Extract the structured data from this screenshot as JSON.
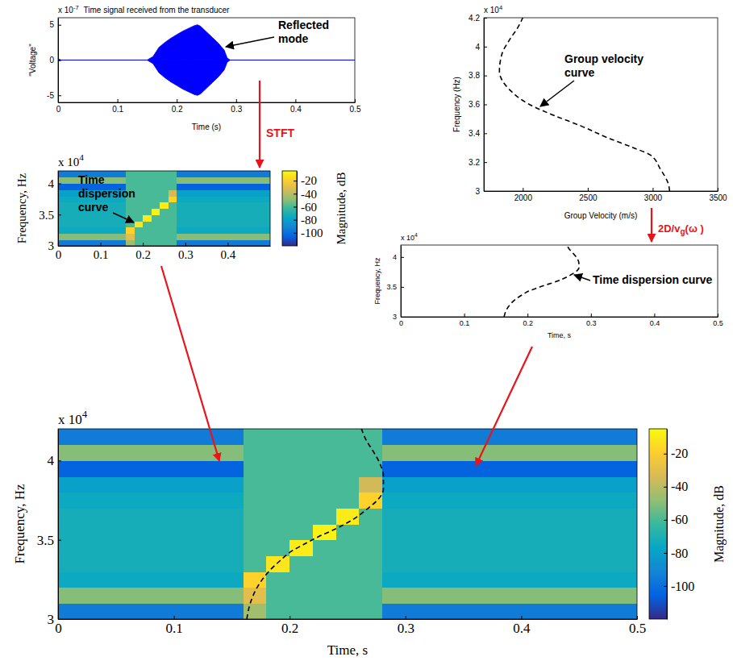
{
  "chart_data": [
    {
      "type": "area",
      "title": "Time signal received from the transducer",
      "y_multiplier": {
        "base": "x 10",
        "exponent": "-7"
      },
      "xlabel": "Time (s)",
      "ylabel": "\"Voltage\"",
      "annotation": "Reflected mode",
      "x": [
        0,
        0.005,
        0.01,
        0.15,
        0.16,
        0.17,
        0.18,
        0.19,
        0.2,
        0.21,
        0.22,
        0.23,
        0.235,
        0.24,
        0.25,
        0.26,
        0.27,
        0.28,
        0.285,
        0.29,
        0.5
      ],
      "series": [
        {
          "color": "#0000ff",
          "values": [
            0.2,
            0,
            0,
            0,
            0.5,
            1.8,
            2.5,
            3.1,
            3.6,
            4.1,
            4.5,
            4.9,
            5,
            4.8,
            4,
            3.2,
            2.4,
            1.4,
            0.3,
            0,
            0
          ]
        },
        {
          "color": "#0000ff",
          "values": [
            -0.2,
            0,
            0,
            0,
            -0.5,
            -1.8,
            -2.5,
            -3.1,
            -3.6,
            -4.1,
            -4.5,
            -4.9,
            -5,
            -4.8,
            -4,
            -3.2,
            -2.4,
            -1.4,
            -0.3,
            0,
            0
          ]
        }
      ],
      "xlim": [
        0,
        0.5
      ],
      "xticks": [
        0,
        0.1,
        0.2,
        0.3,
        0.4,
        0.5
      ],
      "ylim": [
        -6,
        6
      ],
      "yticks": [
        -5,
        0,
        5
      ]
    },
    {
      "type": "line",
      "y_multiplier": {
        "base": "x 10",
        "exponent": "4"
      },
      "xlabel": "Group Velocity (m/s)",
      "ylabel": "Frequency (Hz)",
      "annotation": "Group velocity curve",
      "x": [
        3130,
        3120,
        3060,
        2980,
        2850,
        2650,
        2450,
        2250,
        2050,
        1900,
        1820,
        1840,
        1900,
        1960,
        2000
      ],
      "series": [
        {
          "color": "#000000",
          "line_style": "dashed",
          "values": [
            3,
            3.05,
            3.15,
            3.25,
            3.3,
            3.37,
            3.45,
            3.52,
            3.6,
            3.7,
            3.83,
            3.95,
            4.05,
            4.13,
            4.2
          ]
        }
      ],
      "xlim": [
        1700,
        3500
      ],
      "xticks": [
        2000,
        2500,
        3000,
        3500
      ],
      "ylim": [
        3,
        4.2
      ],
      "yticks": [
        3,
        3.2,
        3.4,
        3.6,
        3.8,
        4,
        4.2
      ]
    },
    {
      "type": "heatmap",
      "y_multiplier": {
        "base": "x 10",
        "exponent": "4"
      },
      "ylabel": "Frequency, Hz",
      "annotation": "Time dispersion curve",
      "x_bins": [
        0,
        0.02,
        0.04,
        0.06,
        0.08,
        0.1,
        0.12,
        0.14,
        0.16,
        0.18,
        0.2,
        0.22,
        0.24,
        0.26,
        0.28,
        0.3,
        0.32,
        0.34,
        0.36,
        0.38,
        0.4,
        0.42,
        0.44,
        0.46,
        0.48,
        0.5
      ],
      "y_bins": [
        3,
        3.1,
        3.2,
        3.3,
        3.4,
        3.5,
        3.6,
        3.7,
        3.8,
        3.9,
        4,
        4.1,
        4.2
      ],
      "cells": [
        [
          -95,
          -95,
          -95,
          -95,
          -95,
          -95,
          -95,
          -95,
          -45,
          -60,
          -60,
          -60,
          -60,
          -60,
          -95,
          -95,
          -95,
          -95,
          -95,
          -95,
          -95,
          -95,
          -95,
          -95,
          -95
        ],
        [
          -50,
          -50,
          -50,
          -50,
          -50,
          -50,
          -50,
          -50,
          -30,
          -60,
          -60,
          -60,
          -60,
          -60,
          -50,
          -50,
          -50,
          -50,
          -50,
          -50,
          -50,
          -50,
          -50,
          -50,
          -50
        ],
        [
          -75,
          -75,
          -75,
          -75,
          -75,
          -75,
          -75,
          -75,
          -18,
          -60,
          -60,
          -60,
          -60,
          -60,
          -75,
          -75,
          -75,
          -75,
          -75,
          -75,
          -75,
          -75,
          -75,
          -75,
          -75
        ],
        [
          -72,
          -72,
          -72,
          -72,
          -72,
          -72,
          -72,
          -72,
          -60,
          -12,
          -60,
          -60,
          -60,
          -60,
          -72,
          -72,
          -72,
          -72,
          -72,
          -72,
          -72,
          -72,
          -72,
          -72,
          -72
        ],
        [
          -72,
          -72,
          -72,
          -72,
          -72,
          -72,
          -72,
          -72,
          -60,
          -60,
          -10,
          -60,
          -60,
          -60,
          -72,
          -72,
          -72,
          -72,
          -72,
          -72,
          -72,
          -72,
          -72,
          -72,
          -72
        ],
        [
          -72,
          -72,
          -72,
          -72,
          -72,
          -72,
          -72,
          -72,
          -60,
          -60,
          -60,
          -8,
          -60,
          -60,
          -72,
          -72,
          -72,
          -72,
          -72,
          -72,
          -72,
          -72,
          -72,
          -72,
          -72
        ],
        [
          -72,
          -72,
          -72,
          -72,
          -72,
          -72,
          -72,
          -72,
          -60,
          -60,
          -60,
          -60,
          -10,
          -60,
          -72,
          -72,
          -72,
          -72,
          -72,
          -72,
          -72,
          -72,
          -72,
          -72,
          -72
        ],
        [
          -75,
          -75,
          -75,
          -75,
          -75,
          -75,
          -75,
          -75,
          -60,
          -60,
          -60,
          -60,
          -60,
          -18,
          -75,
          -75,
          -75,
          -75,
          -75,
          -75,
          -75,
          -75,
          -75,
          -75,
          -75
        ],
        [
          -80,
          -80,
          -80,
          -80,
          -80,
          -80,
          -80,
          -80,
          -60,
          -60,
          -60,
          -60,
          -60,
          -35,
          -80,
          -80,
          -80,
          -80,
          -80,
          -80,
          -80,
          -80,
          -80,
          -80,
          -80
        ],
        [
          -105,
          -105,
          -105,
          -105,
          -105,
          -105,
          -105,
          -105,
          -60,
          -60,
          -60,
          -60,
          -60,
          -60,
          -105,
          -105,
          -105,
          -105,
          -105,
          -105,
          -105,
          -105,
          -105,
          -105,
          -105
        ],
        [
          -50,
          -50,
          -50,
          -50,
          -50,
          -50,
          -50,
          -50,
          -60,
          -60,
          -60,
          -60,
          -60,
          -60,
          -50,
          -50,
          -50,
          -50,
          -50,
          -50,
          -50,
          -50,
          -50,
          -50,
          -50
        ],
        [
          -95,
          -95,
          -95,
          -95,
          -95,
          -95,
          -95,
          -95,
          -60,
          -60,
          -60,
          -60,
          -60,
          -60,
          -95,
          -95,
          -95,
          -95,
          -95,
          -95,
          -95,
          -95,
          -95,
          -95,
          -95
        ]
      ],
      "clim": [
        -120,
        -5
      ],
      "cticks": [
        -20,
        -40,
        -60,
        -80,
        -100
      ],
      "colorbar_label": "Magnitude, dB",
      "xlim": [
        0,
        0.5
      ],
      "xticks": [
        0,
        0.1,
        0.2,
        0.3,
        0.4
      ],
      "ylim": [
        3,
        4.2
      ],
      "yticks": [
        3,
        3.5,
        4
      ]
    },
    {
      "type": "line",
      "y_multiplier": {
        "base": "x 10",
        "exponent": "4"
      },
      "xlabel": "Time, s",
      "ylabel": "Frequency, Hz",
      "annotation": "Time dispersion curve",
      "x": [
        0.163,
        0.166,
        0.172,
        0.182,
        0.192,
        0.202,
        0.212,
        0.225,
        0.24,
        0.255,
        0.268,
        0.277,
        0.281,
        0.281,
        0.278,
        0.272,
        0.266,
        0.262
      ],
      "series": [
        {
          "color": "#000000",
          "line_style": "dashed",
          "values": [
            3,
            3.1,
            3.2,
            3.3,
            3.37,
            3.43,
            3.47,
            3.52,
            3.57,
            3.63,
            3.7,
            3.76,
            3.82,
            3.9,
            3.98,
            4.06,
            4.13,
            4.2
          ]
        }
      ],
      "xlim": [
        0,
        0.5
      ],
      "xticks": [
        0,
        0.1,
        0.2,
        0.3,
        0.4,
        0.5
      ],
      "ylim": [
        3,
        4.2
      ],
      "yticks": [
        3,
        3.5,
        4
      ]
    },
    {
      "type": "heatmap",
      "y_multiplier": {
        "base": "x 10",
        "exponent": "4"
      },
      "xlabel": "Time, s",
      "ylabel": "Frequency, Hz",
      "x_bins": [
        0,
        0.02,
        0.04,
        0.06,
        0.08,
        0.1,
        0.12,
        0.14,
        0.16,
        0.18,
        0.2,
        0.22,
        0.24,
        0.26,
        0.28,
        0.3,
        0.32,
        0.34,
        0.36,
        0.38,
        0.4,
        0.42,
        0.44,
        0.46,
        0.48,
        0.5
      ],
      "y_bins": [
        3,
        3.1,
        3.2,
        3.3,
        3.4,
        3.5,
        3.6,
        3.7,
        3.8,
        3.9,
        4,
        4.1,
        4.2
      ],
      "cells": [
        [
          -95,
          -95,
          -95,
          -95,
          -95,
          -95,
          -95,
          -95,
          -45,
          -60,
          -60,
          -60,
          -60,
          -60,
          -95,
          -95,
          -95,
          -95,
          -95,
          -95,
          -95,
          -95,
          -95,
          -95,
          -95
        ],
        [
          -50,
          -50,
          -50,
          -50,
          -50,
          -50,
          -50,
          -50,
          -30,
          -60,
          -60,
          -60,
          -60,
          -60,
          -50,
          -50,
          -50,
          -50,
          -50,
          -50,
          -50,
          -50,
          -50,
          -50,
          -50
        ],
        [
          -75,
          -75,
          -75,
          -75,
          -75,
          -75,
          -75,
          -75,
          -18,
          -60,
          -60,
          -60,
          -60,
          -60,
          -75,
          -75,
          -75,
          -75,
          -75,
          -75,
          -75,
          -75,
          -75,
          -75,
          -75
        ],
        [
          -72,
          -72,
          -72,
          -72,
          -72,
          -72,
          -72,
          -72,
          -60,
          -12,
          -60,
          -60,
          -60,
          -60,
          -72,
          -72,
          -72,
          -72,
          -72,
          -72,
          -72,
          -72,
          -72,
          -72,
          -72
        ],
        [
          -72,
          -72,
          -72,
          -72,
          -72,
          -72,
          -72,
          -72,
          -60,
          -60,
          -10,
          -60,
          -60,
          -60,
          -72,
          -72,
          -72,
          -72,
          -72,
          -72,
          -72,
          -72,
          -72,
          -72,
          -72
        ],
        [
          -72,
          -72,
          -72,
          -72,
          -72,
          -72,
          -72,
          -72,
          -60,
          -60,
          -60,
          -8,
          -60,
          -60,
          -72,
          -72,
          -72,
          -72,
          -72,
          -72,
          -72,
          -72,
          -72,
          -72,
          -72
        ],
        [
          -72,
          -72,
          -72,
          -72,
          -72,
          -72,
          -72,
          -72,
          -60,
          -60,
          -60,
          -60,
          -10,
          -60,
          -72,
          -72,
          -72,
          -72,
          -72,
          -72,
          -72,
          -72,
          -72,
          -72,
          -72
        ],
        [
          -75,
          -75,
          -75,
          -75,
          -75,
          -75,
          -75,
          -75,
          -60,
          -60,
          -60,
          -60,
          -60,
          -18,
          -75,
          -75,
          -75,
          -75,
          -75,
          -75,
          -75,
          -75,
          -75,
          -75,
          -75
        ],
        [
          -80,
          -80,
          -80,
          -80,
          -80,
          -80,
          -80,
          -80,
          -60,
          -60,
          -60,
          -60,
          -60,
          -35,
          -80,
          -80,
          -80,
          -80,
          -80,
          -80,
          -80,
          -80,
          -80,
          -80,
          -80
        ],
        [
          -105,
          -105,
          -105,
          -105,
          -105,
          -105,
          -105,
          -105,
          -60,
          -60,
          -60,
          -60,
          -60,
          -60,
          -105,
          -105,
          -105,
          -105,
          -105,
          -105,
          -105,
          -105,
          -105,
          -105,
          -105
        ],
        [
          -50,
          -50,
          -50,
          -50,
          -50,
          -50,
          -50,
          -50,
          -60,
          -60,
          -60,
          -60,
          -60,
          -60,
          -50,
          -50,
          -50,
          -50,
          -50,
          -50,
          -50,
          -50,
          -50,
          -50,
          -50
        ],
        [
          -95,
          -95,
          -95,
          -95,
          -95,
          -95,
          -95,
          -95,
          -60,
          -60,
          -60,
          -60,
          -60,
          -60,
          -95,
          -95,
          -95,
          -95,
          -95,
          -95,
          -95,
          -95,
          -95,
          -95,
          -95
        ]
      ],
      "series": [
        {
          "color": "#000000",
          "line_style": "dashed",
          "x": [
            0.163,
            0.166,
            0.172,
            0.182,
            0.192,
            0.202,
            0.212,
            0.225,
            0.24,
            0.255,
            0.268,
            0.277,
            0.281,
            0.281,
            0.278,
            0.272,
            0.266,
            0.262
          ],
          "values": [
            3,
            3.1,
            3.2,
            3.3,
            3.37,
            3.43,
            3.47,
            3.52,
            3.57,
            3.63,
            3.7,
            3.76,
            3.82,
            3.9,
            3.98,
            4.06,
            4.13,
            4.2
          ]
        }
      ],
      "clim": [
        -120,
        -5
      ],
      "cticks": [
        -20,
        -40,
        -60,
        -80,
        -100
      ],
      "colorbar_label": "Magnitude, dB",
      "xlim": [
        0,
        0.5
      ],
      "xticks": [
        0,
        0.1,
        0.2,
        0.3,
        0.4,
        0.5
      ],
      "ylim": [
        3,
        4.2
      ],
      "yticks": [
        3,
        3.5,
        4
      ]
    }
  ],
  "arrow_labels": [
    "STFT",
    {
      "text": "2D/v",
      "subscript": "g",
      "rest": "(ω )"
    }
  ]
}
